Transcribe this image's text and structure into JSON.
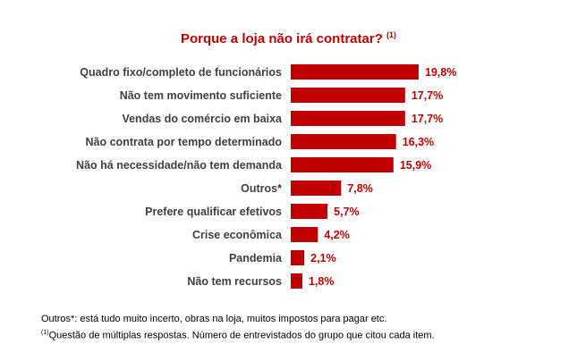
{
  "chart_data": {
    "type": "bar",
    "orientation": "horizontal",
    "title": "Porque a loja não irá contratar?",
    "title_note_marker": "(1)",
    "categories": [
      "Quadro fixo/completo de funcionários",
      "Não tem movimento suficiente",
      "Vendas do comércio em baixa",
      "Não contrata por tempo determinado",
      "Não há necessidade/não tem demanda",
      "Outros*",
      "Prefere qualificar efetivos",
      "Crise econômica",
      "Pandemia",
      "Não tem recursos"
    ],
    "values": [
      19.8,
      17.7,
      17.7,
      16.3,
      15.9,
      7.8,
      5.7,
      4.2,
      2.1,
      1.8
    ],
    "value_labels": [
      "19,8%",
      "17,7%",
      "17,7%",
      "16,3%",
      "15,9%",
      "7,8%",
      "5,7%",
      "4,2%",
      "2,1%",
      "1,8%"
    ],
    "bar_color": "#c00000",
    "label_color": "#404040",
    "value_color": "#c00000",
    "grid": false,
    "legend": "none"
  },
  "footnotes": {
    "outros_note": "Outros*: está tudo muito incerto, obras na loja, muitos impostos para pagar etc.",
    "marker": "(1)",
    "question_note": "Questão de múltiplas respostas. Número de entrevistados do grupo que citou cada item."
  }
}
